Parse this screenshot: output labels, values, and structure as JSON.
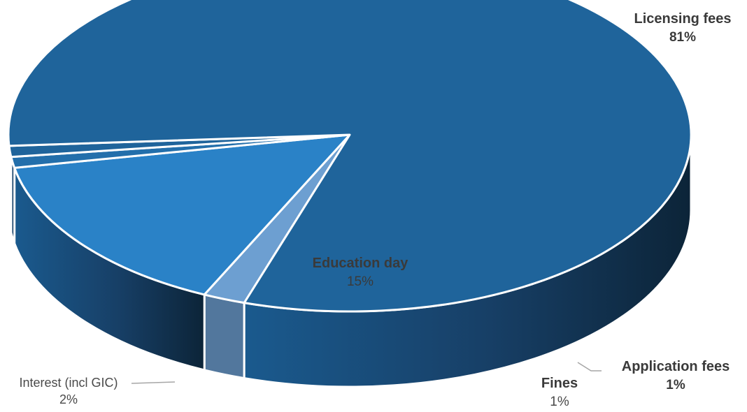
{
  "chart_data": {
    "type": "pie",
    "title": "",
    "labels": [
      "Licensing fees",
      "Education day",
      "Interest (incl GIC)",
      "Fines",
      "Application fees"
    ],
    "values": [
      81,
      15,
      2,
      1,
      1
    ],
    "value_labels": [
      "81%",
      "15%",
      "2%",
      "1%",
      "1%"
    ],
    "colors": [
      "#1f649b",
      "#2a82c7",
      "#6d9fd1",
      "#236fab",
      "#1f649b"
    ],
    "legend": "none",
    "style": "3d-pie"
  }
}
